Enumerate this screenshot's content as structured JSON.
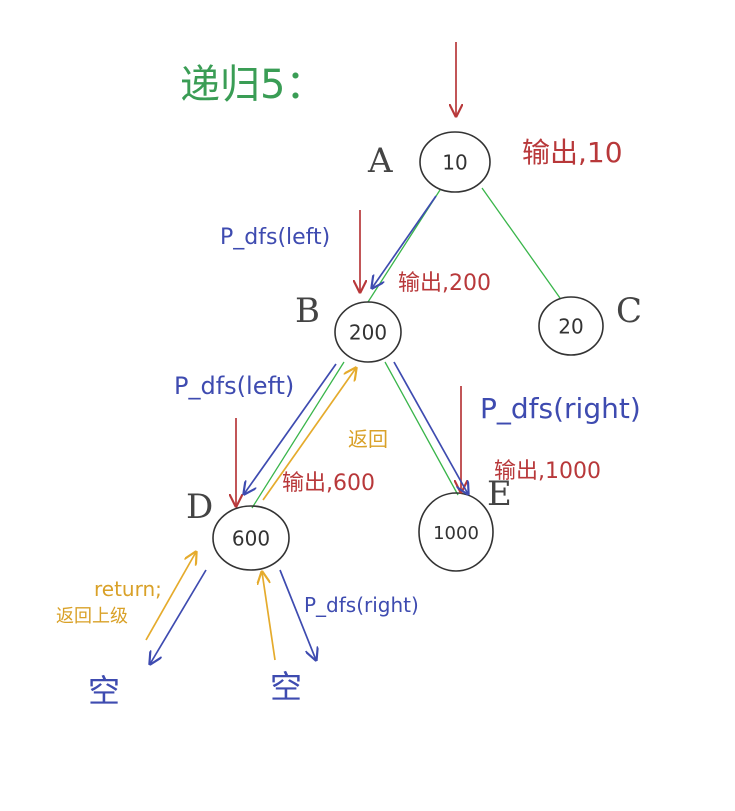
{
  "title": "递归5：",
  "nodes": {
    "a": {
      "letter": "A",
      "value": "10"
    },
    "b": {
      "letter": "B",
      "value": "200"
    },
    "c": {
      "letter": "C",
      "value": "20"
    },
    "d": {
      "letter": "D",
      "value": "600"
    },
    "e": {
      "letter": "E",
      "value": "1000"
    }
  },
  "labels": {
    "output_a": "输出,10",
    "output_b": "输出,200",
    "output_d": "输出,600",
    "output_e": "输出,1000",
    "call_b": "P_dfs(left)",
    "call_d": "P_dfs(left)",
    "call_e": "P_dfs(right)",
    "call_d_right": "P_dfs(right)",
    "return_up": "返回",
    "return_stmt": "return;",
    "return_parent": "返回上级",
    "empty_left": "空",
    "empty_right": "空"
  },
  "colors": {
    "output": "#b8383a",
    "call": "#3e4bb0",
    "return": "#e5ab2c",
    "edge": "#39b54a",
    "title": "#3a9d55"
  }
}
